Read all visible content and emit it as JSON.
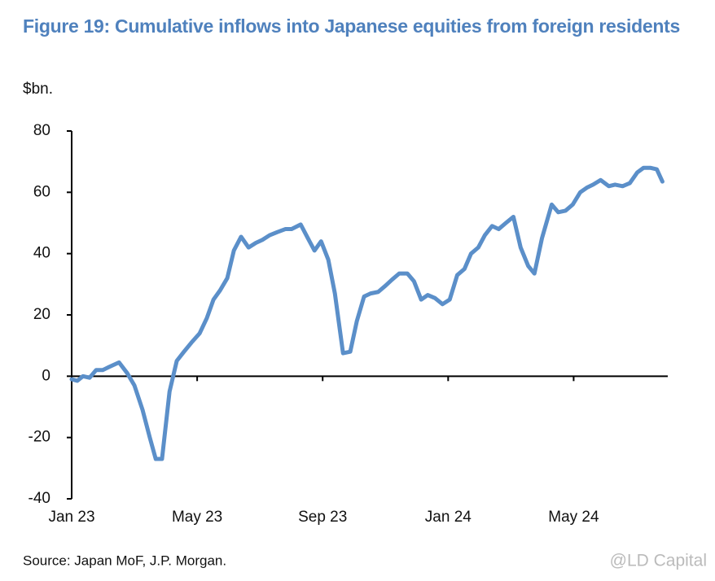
{
  "chart_data": {
    "type": "line",
    "title": "Figure 19: Cumulative inflows into Japanese equities from foreign residents",
    "y_label": "$bn.",
    "source": "Source: Japan MoF, J.P. Morgan.",
    "watermark": "@LD Capital",
    "x": [
      0,
      0.18,
      0.36,
      0.57,
      0.78,
      0.99,
      1.19,
      1.51,
      1.77,
      2.0,
      2.26,
      2.49,
      2.68,
      2.88,
      3.12,
      3.35,
      3.58,
      3.82,
      4.08,
      4.31,
      4.52,
      4.73,
      4.96,
      5.17,
      5.4,
      5.64,
      5.87,
      6.08,
      6.31,
      6.55,
      6.81,
      7.01,
      7.3,
      7.53,
      7.74,
      7.95,
      8.18,
      8.39,
      8.65,
      8.88,
      9.09,
      9.32,
      9.53,
      9.77,
      10.0,
      10.21,
      10.44,
      10.7,
      10.91,
      11.14,
      11.35,
      11.58,
      11.82,
      12.05,
      12.29,
      12.52,
      12.73,
      12.96,
      13.17,
      13.4,
      13.61,
      13.84,
      14.08,
      14.31,
      14.55,
      14.75,
      14.99,
      15.3,
      15.51,
      15.74,
      15.97,
      16.21,
      16.42,
      16.62,
      16.86,
      17.12,
      17.32,
      17.56,
      17.79,
      18.03,
      18.23,
      18.44,
      18.65,
      18.83
    ],
    "series": [
      {
        "name": "Cumulative inflows",
        "color": "#5b8fc9",
        "values": [
          -1,
          -1.5,
          0,
          -0.5,
          2,
          2,
          3,
          4.5,
          1,
          -3,
          -11,
          -20,
          -27,
          -27,
          -5,
          5,
          8,
          11,
          14,
          19,
          25,
          28,
          32,
          41,
          45.5,
          42,
          43.5,
          44.5,
          46,
          47,
          48,
          48,
          49.5,
          45,
          41,
          44,
          38,
          27,
          7.5,
          8,
          18,
          26,
          27,
          27.5,
          29.5,
          31.5,
          33.5,
          33.5,
          31,
          25,
          26.5,
          25.5,
          23.5,
          25,
          33,
          35,
          40,
          42,
          46,
          49,
          48,
          50,
          52,
          42,
          36,
          33.5,
          45,
          56,
          53.5,
          54,
          56,
          60,
          61.5,
          62.5,
          64,
          62,
          62.5,
          62,
          63,
          66.5,
          68,
          68,
          67.5,
          63.5
        ]
      }
    ],
    "xlim": [
      0,
      19
    ],
    "xticks": [
      {
        "value": 0,
        "label": "Jan 23"
      },
      {
        "value": 4,
        "label": "May 23"
      },
      {
        "value": 8,
        "label": "Sep 23"
      },
      {
        "value": 12,
        "label": "Jan 24"
      },
      {
        "value": 16,
        "label": "May 24"
      }
    ],
    "ylim": [
      -40,
      80
    ],
    "yticks": [
      -40,
      -20,
      0,
      20,
      40,
      60,
      80
    ],
    "grid": false
  }
}
